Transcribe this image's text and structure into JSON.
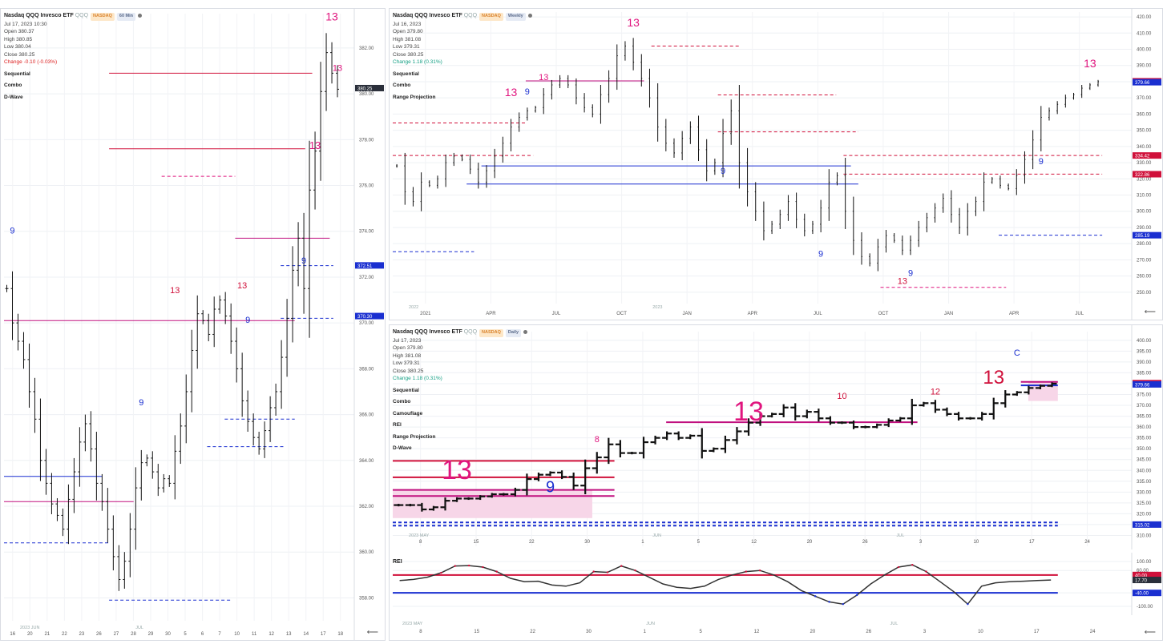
{
  "panels": {
    "left": {
      "title": "Nasdaq QQQ Invesco ETF",
      "ticker": "QQQ",
      "exchange": "NASDAQ",
      "interval": "60 Min",
      "date": "Jul 17, 2023 10:30",
      "ohlc": [
        "Open 380.37",
        "High 380.85",
        "Low 380.04",
        "Close 380.25"
      ],
      "change": "Change -0.10 (-0.03%)",
      "indicators": [
        "Sequential",
        "Combo",
        "D-Wave"
      ]
    },
    "weekly": {
      "title": "Nasdaq QQQ Invesco ETF",
      "ticker": "QQQ",
      "exchange": "NASDAQ",
      "interval": "Weekly",
      "date": "Jul 16, 2023",
      "ohlc": [
        "Open 379.80",
        "High 381.08",
        "Low 379.31",
        "Close 380.25"
      ],
      "change": "Change 1.18 (0.31%)",
      "indicators": [
        "Sequential",
        "Combo",
        "Range Projection"
      ]
    },
    "daily": {
      "title": "Nasdaq QQQ Invesco ETF",
      "ticker": "QQQ",
      "exchange": "NASDAQ",
      "interval": "Daily",
      "date": "Jul 17, 2023",
      "ohlc": [
        "Open 379.80",
        "High 381.08",
        "Low 379.31",
        "Close 380.25"
      ],
      "change": "Change 1.18 (0.31%)",
      "indicators": [
        "Sequential",
        "Combo",
        "Camouflage",
        "REI",
        "Range Projection",
        "D-Wave"
      ]
    },
    "rei": {
      "label": "REI"
    }
  },
  "colors": {
    "red": "#d0103a",
    "magenta": "#e0157e",
    "blue": "#1a2fd0",
    "pink_zone": "#f7d6e8",
    "bar": "#111111",
    "price_tag": "#2a2f3a"
  },
  "chart_data": [
    {
      "type": "bar",
      "title": "Nasdaq QQQ Invesco ETF 60 Min",
      "ylim": [
        357,
        383.5
      ],
      "y_ticks": [
        358,
        360,
        362,
        364,
        366,
        368,
        370,
        372,
        374,
        376,
        378,
        380,
        382
      ],
      "x_ticks": [
        "16",
        "20",
        "21",
        "22",
        "23",
        "26",
        "27",
        "28",
        "29",
        "30",
        "5",
        "6",
        "7",
        "10",
        "11",
        "12",
        "13",
        "14",
        "17",
        "18"
      ],
      "x_notes": [
        "2023 JUN",
        "JUL"
      ],
      "price_tags": [
        {
          "value": 380.25,
          "text": "380.25",
          "color": "#2a2f3a"
        },
        {
          "value": 372.51,
          "text": "372.51",
          "color": "#1a2fd0"
        },
        {
          "value": 370.3,
          "text": "370.30",
          "color": "#1a2fd0"
        }
      ],
      "closes": [
        371.5,
        370.0,
        369.2,
        368.4,
        367.0,
        365.8,
        364.0,
        363.0,
        362.1,
        361.6,
        361.0,
        362.3,
        363.5,
        364.8,
        365.6,
        364.5,
        363.0,
        362.2,
        361.0,
        359.8,
        358.8,
        359.6,
        361.0,
        362.8,
        363.9,
        364.1,
        363.5,
        362.8,
        363.2,
        363.0,
        364.4,
        365.5,
        367.0,
        368.8,
        370.4,
        370.1,
        369.5,
        370.6,
        371.0,
        370.3,
        369.2,
        368.0,
        366.6,
        365.7,
        365.0,
        364.5,
        365.3,
        366.3,
        367.0,
        368.5,
        370.2,
        372.3,
        373.7,
        371.5,
        375.8,
        377.5,
        380.1,
        381.8,
        380.9,
        380.2
      ],
      "levels": [
        {
          "y": 380.9,
          "color": "#d0103a",
          "dash": false,
          "from": 0.3,
          "to": 0.88
        },
        {
          "y": 377.6,
          "color": "#d0103a",
          "dash": false,
          "from": 0.3,
          "to": 0.86
        },
        {
          "y": 376.4,
          "color": "#e0157e",
          "dash": true,
          "from": 0.45,
          "to": 0.66
        },
        {
          "y": 373.7,
          "color": "#c0107f",
          "dash": false,
          "from": 0.66,
          "to": 0.93
        },
        {
          "y": 372.5,
          "color": "#1a2fd0",
          "dash": true,
          "from": 0.79,
          "to": 0.94
        },
        {
          "y": 370.1,
          "color": "#c0107f",
          "dash": false,
          "from": 0.0,
          "to": 0.83
        },
        {
          "y": 370.2,
          "color": "#1a2fd0",
          "dash": true,
          "from": 0.79,
          "to": 0.94
        },
        {
          "y": 365.8,
          "color": "#1a2fd0",
          "dash": true,
          "from": 0.63,
          "to": 0.83
        },
        {
          "y": 364.6,
          "color": "#1a2fd0",
          "dash": true,
          "from": 0.58,
          "to": 0.8
        },
        {
          "y": 363.3,
          "color": "#1a2fd0",
          "dash": false,
          "from": 0.0,
          "to": 0.28
        },
        {
          "y": 362.2,
          "color": "#c0107f",
          "dash": false,
          "from": 0.0,
          "to": 0.37
        },
        {
          "y": 360.4,
          "color": "#1a2fd0",
          "dash": true,
          "from": 0.0,
          "to": 0.3
        },
        {
          "y": 357.9,
          "color": "#1a2fd0",
          "dash": true,
          "from": 0.3,
          "to": 0.65
        }
      ],
      "annotations": [
        {
          "text": "13",
          "i": 58,
          "y": 383.2,
          "color": "#e0157e",
          "size": 14
        },
        {
          "text": "13",
          "i": 59,
          "y": 381.0,
          "color": "#e0157e",
          "size": 11
        },
        {
          "text": "13",
          "i": 55,
          "y": 377.6,
          "color": "#e0157e",
          "size": 13
        },
        {
          "text": "9",
          "i": 1,
          "y": 373.9,
          "color": "#1a2fd0",
          "size": 11
        },
        {
          "text": "9",
          "i": 53,
          "y": 372.6,
          "color": "#1a2fd0",
          "size": 11
        },
        {
          "text": "13",
          "i": 30,
          "y": 371.3,
          "color": "#d0103a",
          "size": 11
        },
        {
          "text": "13",
          "i": 42,
          "y": 371.5,
          "color": "#d0103a",
          "size": 11
        },
        {
          "text": "9",
          "i": 43,
          "y": 370.0,
          "color": "#1a2fd0",
          "size": 11
        },
        {
          "text": "9",
          "i": 24,
          "y": 366.4,
          "color": "#1a2fd0",
          "size": 11
        }
      ]
    },
    {
      "type": "bar",
      "title": "Nasdaq QQQ Invesco ETF Weekly",
      "ylim": [
        243,
        423
      ],
      "y_ticks": [
        250,
        260,
        270,
        280,
        290,
        300,
        310,
        320,
        330,
        340,
        350,
        360,
        370,
        380,
        390,
        400,
        410,
        420
      ],
      "x_ticks": [
        "2021",
        "APR",
        "JUL",
        "OCT",
        "JAN",
        "APR",
        "JUL",
        "OCT",
        "JAN",
        "APR",
        "JUL"
      ],
      "x_notes": [
        "2022",
        "2023"
      ],
      "price_tags": [
        {
          "value": 380.25,
          "text": "380.25",
          "color": "#d0103a"
        },
        {
          "value": 379.66,
          "text": "379.66",
          "color": "#1a2fd0"
        },
        {
          "value": 334.42,
          "text": "334.42",
          "color": "#d0103a"
        },
        {
          "value": 322.86,
          "text": "322.86",
          "color": "#d0103a"
        },
        {
          "value": 285.19,
          "text": "285.19",
          "color": "#1a2fd0"
        }
      ],
      "closes": [
        328,
        312,
        306,
        318,
        316,
        320,
        330,
        334,
        332,
        326,
        318,
        325,
        334,
        342,
        352,
        358,
        362,
        364,
        372,
        378,
        382,
        378,
        370,
        364,
        360,
        372,
        382,
        396,
        402,
        392,
        382,
        370,
        352,
        342,
        336,
        345,
        352,
        338,
        325,
        330,
        348,
        362,
        330,
        312,
        300,
        288,
        292,
        298,
        306,
        295,
        288,
        292,
        302,
        318,
        322,
        300,
        282,
        272,
        268,
        278,
        285,
        282,
        276,
        282,
        290,
        296,
        302,
        308,
        298,
        290,
        300,
        306,
        318,
        320,
        316,
        314,
        322,
        332,
        344,
        358,
        362,
        366,
        370,
        372,
        376,
        378,
        380
      ],
      "levels": [
        {
          "y": 402.0,
          "color": "#d0103a",
          "dash": true,
          "from": 0.35,
          "to": 0.47
        },
        {
          "y": 380.5,
          "color": "#c0107f",
          "dash": false,
          "from": 0.18,
          "to": 0.34
        },
        {
          "y": 371.8,
          "color": "#d0103a",
          "dash": true,
          "from": 0.44,
          "to": 0.6
        },
        {
          "y": 354.5,
          "color": "#d0103a",
          "dash": true,
          "from": 0.0,
          "to": 0.18
        },
        {
          "y": 349.0,
          "color": "#d0103a",
          "dash": true,
          "from": 0.44,
          "to": 0.63
        },
        {
          "y": 334.4,
          "color": "#d0103a",
          "dash": true,
          "from": 0.0,
          "to": 0.19
        },
        {
          "y": 334.4,
          "color": "#d0103a",
          "dash": true,
          "from": 0.61,
          "to": 0.96
        },
        {
          "y": 328.0,
          "color": "#1a2fd0",
          "dash": false,
          "from": 0.12,
          "to": 0.62
        },
        {
          "y": 322.9,
          "color": "#d0103a",
          "dash": true,
          "from": 0.61,
          "to": 0.96
        },
        {
          "y": 316.8,
          "color": "#1a2fd0",
          "dash": false,
          "from": 0.1,
          "to": 0.63
        },
        {
          "y": 285.2,
          "color": "#1a2fd0",
          "dash": true,
          "from": 0.82,
          "to": 0.96
        },
        {
          "y": 275.0,
          "color": "#1a2fd0",
          "dash": true,
          "from": 0.0,
          "to": 0.11
        },
        {
          "y": 253.0,
          "color": "#e0157e",
          "dash": true,
          "from": 0.66,
          "to": 0.83
        }
      ],
      "annotations": [
        {
          "text": "13",
          "i": 29,
          "y": 414,
          "color": "#e0157e",
          "size": 14
        },
        {
          "text": "13",
          "i": 18,
          "y": 381,
          "color": "#e0157e",
          "size": 11
        },
        {
          "text": "13",
          "i": 14,
          "y": 371,
          "color": "#e0157e",
          "size": 14
        },
        {
          "text": "9",
          "i": 16,
          "y": 372,
          "color": "#1a2fd0",
          "size": 11
        },
        {
          "text": "9",
          "i": 40,
          "y": 323,
          "color": "#1a2fd0",
          "size": 11
        },
        {
          "text": "9",
          "i": 52,
          "y": 272,
          "color": "#1a2fd0",
          "size": 11
        },
        {
          "text": "13",
          "i": 62,
          "y": 255,
          "color": "#d0103a",
          "size": 11
        },
        {
          "text": "9",
          "i": 63,
          "y": 260,
          "color": "#1a2fd0",
          "size": 11
        },
        {
          "text": "9",
          "i": 79,
          "y": 329,
          "color": "#1a2fd0",
          "size": 11
        },
        {
          "text": "13",
          "i": 85,
          "y": 389,
          "color": "#e0157e",
          "size": 14
        }
      ]
    },
    {
      "type": "bar",
      "title": "Nasdaq QQQ Invesco ETF Daily",
      "ylim": [
        305,
        404
      ],
      "y_ticks": [
        310,
        315,
        320,
        325,
        330,
        335,
        340,
        345,
        350,
        355,
        360,
        365,
        370,
        375,
        380,
        385,
        390,
        395,
        400
      ],
      "x_ticks": [
        "8",
        "15",
        "22",
        "30",
        "1",
        "5",
        "12",
        "20",
        "26",
        "3",
        "10",
        "17",
        "24"
      ],
      "x_notes": [
        "2023 MAY",
        "JUN",
        "JUL"
      ],
      "price_tags": [
        {
          "value": 380.25,
          "text": "380.25",
          "color": "#d0103a"
        },
        {
          "value": 379.66,
          "text": "379.66",
          "color": "#1a2fd0"
        },
        {
          "value": 315.02,
          "text": "315.02",
          "color": "#1a2fd0"
        }
      ],
      "closes": [
        324,
        324,
        322,
        323,
        326,
        327,
        327,
        328,
        329,
        329,
        331,
        336,
        338,
        339,
        337,
        333,
        341,
        346,
        352,
        348,
        348,
        353,
        355,
        357,
        355,
        356,
        349,
        350,
        354,
        358,
        362,
        365,
        366,
        369,
        365,
        367,
        364,
        362,
        362,
        360,
        360,
        361,
        363,
        364,
        370,
        371,
        368,
        366,
        364,
        364,
        366,
        371,
        375,
        376,
        378,
        379,
        380
      ],
      "levels": [
        {
          "y": 344.4,
          "color": "#d0103a",
          "dash": false,
          "from": 0.0,
          "to": 0.3
        },
        {
          "y": 336.8,
          "color": "#d0103a",
          "dash": false,
          "from": 0.0,
          "to": 0.3
        },
        {
          "y": 331.0,
          "color": "#c0107f",
          "dash": false,
          "from": 0.0,
          "to": 0.3
        },
        {
          "y": 328.2,
          "color": "#c0107f",
          "dash": false,
          "from": 0.0,
          "to": 0.3
        },
        {
          "y": 362.2,
          "color": "#c0107f",
          "dash": false,
          "from": 0.37,
          "to": 0.71
        },
        {
          "y": 380.8,
          "color": "#c0107f",
          "dash": false,
          "from": 0.85,
          "to": 0.9
        },
        {
          "y": 379.2,
          "color": "#1a2fd0",
          "dash": false,
          "from": 0.85,
          "to": 0.9
        },
        {
          "y": 316.0,
          "color": "#1a2fd0",
          "dash": true,
          "from": 0.0,
          "to": 0.9
        },
        {
          "y": 314.5,
          "color": "#1a2fd0",
          "dash": true,
          "from": 0.0,
          "to": 0.9
        }
      ],
      "annotations": [
        {
          "text": "13",
          "i": 5,
          "y": 336,
          "color": "#e0157e",
          "size": 34
        },
        {
          "text": "9",
          "i": 13,
          "y": 330,
          "color": "#1a2fd0",
          "size": 20
        },
        {
          "text": "13",
          "i": 30,
          "y": 363,
          "color": "#e0157e",
          "size": 34
        },
        {
          "text": "13",
          "i": 51,
          "y": 380,
          "color": "#d0103a",
          "size": 24
        },
        {
          "text": "C",
          "i": 53,
          "y": 393,
          "color": "#1a2fd0",
          "size": 11
        },
        {
          "text": "8",
          "i": 17,
          "y": 353,
          "color": "#e0157e",
          "size": 11
        },
        {
          "text": "10",
          "i": 38,
          "y": 373,
          "color": "#d0103a",
          "size": 11
        },
        {
          "text": "12",
          "i": 46,
          "y": 375,
          "color": "#d0103a",
          "size": 11
        }
      ]
    },
    {
      "type": "line",
      "title": "REI",
      "ylim": [
        -118,
        118
      ],
      "y_ticks": [
        100,
        60,
        -40,
        -100
      ],
      "x_ticks": [],
      "price_tags": [
        {
          "value": 40,
          "text": "40.00",
          "color": "#d0103a"
        },
        {
          "value": 17.7,
          "text": "17.70",
          "color": "#2a2f3a"
        },
        {
          "value": -40,
          "text": "-40.00",
          "color": "#1a2fd0"
        }
      ],
      "values": [
        15,
        20,
        30,
        50,
        80,
        82,
        75,
        55,
        25,
        10,
        12,
        -5,
        -10,
        5,
        55,
        52,
        80,
        60,
        30,
        0,
        -15,
        -20,
        -10,
        20,
        40,
        55,
        60,
        40,
        10,
        -30,
        -55,
        -80,
        -90,
        -50,
        0,
        40,
        75,
        85,
        55,
        10,
        -35,
        -90,
        -10,
        5,
        10,
        12,
        15,
        17.7
      ],
      "levels": [
        {
          "y": 40,
          "color": "#d0103a",
          "dash": false,
          "from": 0.0,
          "to": 0.9
        },
        {
          "y": -40,
          "color": "#1a2fd0",
          "dash": false,
          "from": 0.0,
          "to": 0.9
        }
      ],
      "annotations": []
    }
  ]
}
